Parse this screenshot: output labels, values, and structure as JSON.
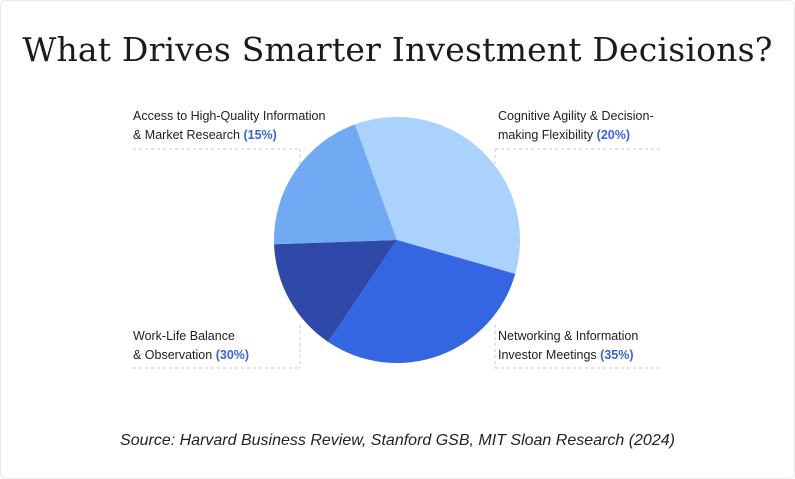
{
  "chart_data": {
    "type": "pie",
    "title": "What Drives Smarter Investment Decisions?",
    "slices": [
      {
        "line1": "Access to High-Quality Information",
        "line2": "& Market Research",
        "pct_label": "(15%)",
        "value": 15,
        "color": "#2f49a8"
      },
      {
        "line1": "Cognitive Agility & Decision-",
        "line2": "making Flexibility",
        "pct_label": "(20%)",
        "value": 20,
        "color": "#72a9f3"
      },
      {
        "line1": "Networking & Information",
        "line2": "Investor Meetings",
        "pct_label": "(35%)",
        "value": 35,
        "color": "#abd1fd"
      },
      {
        "line1": "Work-Life Balance",
        "line2": "& Observation",
        "pct_label": "(30%)",
        "value": 30,
        "color": "#3466e4"
      }
    ]
  },
  "source": "Source: Harvard Business Review, Stanford GSB, MIT Sloan Research (2024)"
}
